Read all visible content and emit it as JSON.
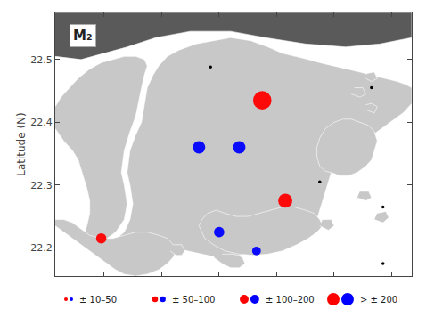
{
  "chart_data": {
    "type": "scatter",
    "ylabel": "Latitude (N)",
    "xlim": [
      113.815,
      114.435
    ],
    "ylim": [
      22.155,
      22.575
    ],
    "xticks": [
      113.9,
      114.0,
      114.1,
      114.2,
      114.3,
      114.4
    ],
    "yticks": [
      22.2,
      22.3,
      22.4,
      22.5
    ],
    "tick_labels": "y",
    "grid": false,
    "legend": "bottom",
    "annotations": [
      "M₂"
    ],
    "series": [
      {
        "type": "area",
        "color": "#5a5a5a",
        "points": [
          [
            113.815,
            22.575
          ],
          [
            114.435,
            22.575
          ],
          [
            114.435,
            22.535
          ],
          [
            114.38,
            22.525
          ],
          [
            114.32,
            22.52
          ],
          [
            114.25,
            22.525
          ],
          [
            114.18,
            22.535
          ],
          [
            114.12,
            22.545
          ],
          [
            114.05,
            22.545
          ],
          [
            113.99,
            22.535
          ],
          [
            113.94,
            22.52
          ],
          [
            113.9,
            22.51
          ],
          [
            113.86,
            22.5
          ],
          [
            113.815,
            22.505
          ]
        ]
      },
      {
        "type": "area",
        "color": "#c8c8c8",
        "points": [
          [
            113.88,
            22.19
          ],
          [
            113.9,
            22.195
          ],
          [
            113.915,
            22.21
          ],
          [
            113.935,
            22.225
          ],
          [
            113.945,
            22.245
          ],
          [
            113.95,
            22.27
          ],
          [
            113.945,
            22.3
          ],
          [
            113.94,
            22.32
          ],
          [
            113.945,
            22.355
          ],
          [
            113.955,
            22.38
          ],
          [
            113.965,
            22.4
          ],
          [
            113.97,
            22.425
          ],
          [
            113.975,
            22.455
          ],
          [
            113.985,
            22.475
          ],
          [
            113.995,
            22.49
          ],
          [
            114.01,
            22.505
          ],
          [
            114.03,
            22.515
          ],
          [
            114.06,
            22.525
          ],
          [
            114.09,
            22.53
          ],
          [
            114.12,
            22.535
          ],
          [
            114.155,
            22.53
          ],
          [
            114.185,
            22.52
          ],
          [
            114.21,
            22.51
          ],
          [
            114.235,
            22.505
          ],
          [
            114.255,
            22.5
          ],
          [
            114.275,
            22.495
          ],
          [
            114.3,
            22.49
          ],
          [
            114.325,
            22.485
          ],
          [
            114.345,
            22.48
          ],
          [
            114.365,
            22.475
          ],
          [
            114.39,
            22.47
          ],
          [
            114.41,
            22.465
          ],
          [
            114.425,
            22.46
          ],
          [
            114.435,
            22.455
          ],
          [
            114.435,
            22.43
          ],
          [
            114.42,
            22.415
          ],
          [
            114.405,
            22.405
          ],
          [
            114.39,
            22.395
          ],
          [
            114.375,
            22.385
          ],
          [
            114.36,
            22.375
          ],
          [
            114.345,
            22.365
          ],
          [
            114.33,
            22.355
          ],
          [
            114.315,
            22.345
          ],
          [
            114.305,
            22.335
          ],
          [
            114.295,
            22.32
          ],
          [
            114.29,
            22.305
          ],
          [
            114.285,
            22.29
          ],
          [
            114.28,
            22.275
          ],
          [
            114.275,
            22.26
          ],
          [
            114.27,
            22.245
          ],
          [
            114.265,
            22.235
          ],
          [
            114.255,
            22.225
          ],
          [
            114.245,
            22.22
          ],
          [
            114.235,
            22.215
          ],
          [
            114.22,
            22.21
          ],
          [
            114.205,
            22.205
          ],
          [
            114.19,
            22.2
          ],
          [
            114.17,
            22.195
          ],
          [
            114.145,
            22.19
          ],
          [
            114.12,
            22.185
          ],
          [
            114.095,
            22.185
          ],
          [
            114.07,
            22.19
          ],
          [
            114.045,
            22.195
          ],
          [
            114.02,
            22.2
          ],
          [
            113.995,
            22.205
          ],
          [
            113.97,
            22.205
          ],
          [
            113.945,
            22.2
          ],
          [
            113.92,
            22.195
          ],
          [
            113.9,
            22.19
          ],
          [
            113.88,
            22.19
          ]
        ]
      },
      {
        "type": "area",
        "color": "#c8c8c8",
        "points": [
          [
            113.815,
            22.39
          ],
          [
            113.83,
            22.37
          ],
          [
            113.845,
            22.355
          ],
          [
            113.855,
            22.34
          ],
          [
            113.86,
            22.325
          ],
          [
            113.865,
            22.31
          ],
          [
            113.87,
            22.295
          ],
          [
            113.875,
            22.275
          ],
          [
            113.875,
            22.255
          ],
          [
            113.87,
            22.235
          ],
          [
            113.865,
            22.22
          ],
          [
            113.875,
            22.215
          ],
          [
            113.89,
            22.21
          ],
          [
            113.905,
            22.215
          ],
          [
            113.92,
            22.225
          ],
          [
            113.935,
            22.245
          ],
          [
            113.94,
            22.27
          ],
          [
            113.935,
            22.3
          ],
          [
            113.93,
            22.32
          ],
          [
            113.935,
            22.355
          ],
          [
            113.945,
            22.385
          ],
          [
            113.955,
            22.41
          ],
          [
            113.96,
            22.435
          ],
          [
            113.965,
            22.455
          ],
          [
            113.97,
            22.475
          ],
          [
            113.975,
            22.49
          ],
          [
            113.97,
            22.5
          ],
          [
            113.955,
            22.505
          ],
          [
            113.935,
            22.505
          ],
          [
            113.915,
            22.5
          ],
          [
            113.895,
            22.495
          ],
          [
            113.875,
            22.485
          ],
          [
            113.855,
            22.47
          ],
          [
            113.84,
            22.455
          ],
          [
            113.825,
            22.44
          ],
          [
            113.815,
            22.425
          ]
        ]
      },
      {
        "type": "area",
        "color": "#c8c8c8",
        "points": [
          [
            113.815,
            22.235
          ],
          [
            113.83,
            22.225
          ],
          [
            113.845,
            22.215
          ],
          [
            113.86,
            22.205
          ],
          [
            113.875,
            22.195
          ],
          [
            113.89,
            22.185
          ],
          [
            113.905,
            22.175
          ],
          [
            113.92,
            22.165
          ],
          [
            113.935,
            22.158
          ],
          [
            113.955,
            22.155
          ],
          [
            113.975,
            22.158
          ],
          [
            113.995,
            22.165
          ],
          [
            114.01,
            22.175
          ],
          [
            114.02,
            22.185
          ],
          [
            114.025,
            22.195
          ],
          [
            114.02,
            22.205
          ],
          [
            114.01,
            22.215
          ],
          [
            113.995,
            22.22
          ],
          [
            113.975,
            22.225
          ],
          [
            113.955,
            22.225
          ],
          [
            113.935,
            22.22
          ],
          [
            113.915,
            22.215
          ],
          [
            113.895,
            22.215
          ],
          [
            113.875,
            22.22
          ],
          [
            113.86,
            22.23
          ],
          [
            113.845,
            22.24
          ],
          [
            113.83,
            22.245
          ],
          [
            113.815,
            22.245
          ]
        ]
      },
      {
        "type": "area",
        "color": "#c8c8c8",
        "points": [
          [
            114.075,
            22.215
          ],
          [
            114.09,
            22.205
          ],
          [
            114.11,
            22.195
          ],
          [
            114.135,
            22.19
          ],
          [
            114.16,
            22.188
          ],
          [
            114.185,
            22.19
          ],
          [
            114.21,
            22.195
          ],
          [
            114.235,
            22.205
          ],
          [
            114.255,
            22.215
          ],
          [
            114.27,
            22.225
          ],
          [
            114.28,
            22.235
          ],
          [
            114.275,
            22.245
          ],
          [
            114.265,
            22.255
          ],
          [
            114.25,
            22.26
          ],
          [
            114.23,
            22.265
          ],
          [
            114.21,
            22.265
          ],
          [
            114.19,
            22.26
          ],
          [
            114.17,
            22.255
          ],
          [
            114.15,
            22.25
          ],
          [
            114.13,
            22.25
          ],
          [
            114.11,
            22.255
          ],
          [
            114.095,
            22.26
          ],
          [
            114.08,
            22.255
          ],
          [
            114.07,
            22.245
          ],
          [
            114.065,
            22.235
          ],
          [
            114.07,
            22.225
          ],
          [
            114.075,
            22.215
          ]
        ]
      },
      {
        "type": "area",
        "color": "#c8c8c8",
        "points": [
          [
            114.295,
            22.32
          ],
          [
            114.31,
            22.315
          ],
          [
            114.325,
            22.315
          ],
          [
            114.34,
            22.32
          ],
          [
            114.355,
            22.33
          ],
          [
            114.365,
            22.34
          ],
          [
            114.37,
            22.355
          ],
          [
            114.375,
            22.37
          ],
          [
            114.37,
            22.385
          ],
          [
            114.36,
            22.395
          ],
          [
            114.345,
            22.4
          ],
          [
            114.33,
            22.405
          ],
          [
            114.315,
            22.405
          ],
          [
            114.3,
            22.4
          ],
          [
            114.285,
            22.39
          ],
          [
            114.275,
            22.375
          ],
          [
            114.27,
            22.36
          ],
          [
            114.27,
            22.345
          ],
          [
            114.275,
            22.33
          ],
          [
            114.285,
            22.322
          ],
          [
            114.295,
            22.32
          ]
        ]
      },
      {
        "type": "area",
        "color": "#c8c8c8",
        "points": [
          [
            114.09,
            22.185
          ],
          [
            114.105,
            22.175
          ],
          [
            114.12,
            22.168
          ],
          [
            114.135,
            22.168
          ],
          [
            114.145,
            22.175
          ],
          [
            114.14,
            22.185
          ],
          [
            114.125,
            22.19
          ],
          [
            114.105,
            22.19
          ]
        ]
      },
      {
        "type": "area",
        "color": "#c8c8c8",
        "points": [
          [
            114.015,
            22.195
          ],
          [
            114.025,
            22.188
          ],
          [
            114.035,
            22.188
          ],
          [
            114.04,
            22.195
          ],
          [
            114.035,
            22.205
          ],
          [
            114.02,
            22.205
          ]
        ]
      },
      {
        "type": "area",
        "color": "#c8c8c8",
        "points": [
          [
            114.33,
            22.445
          ],
          [
            114.345,
            22.44
          ],
          [
            114.355,
            22.445
          ],
          [
            114.35,
            22.455
          ],
          [
            114.335,
            22.455
          ]
        ]
      },
      {
        "type": "area",
        "color": "#c8c8c8",
        "points": [
          [
            114.355,
            22.42
          ],
          [
            114.37,
            22.415
          ],
          [
            114.375,
            22.425
          ],
          [
            114.365,
            22.43
          ],
          [
            114.355,
            22.428
          ]
        ]
      },
      {
        "type": "area",
        "color": "#c8c8c8",
        "points": [
          [
            114.34,
            22.28
          ],
          [
            114.355,
            22.275
          ],
          [
            114.365,
            22.28
          ],
          [
            114.36,
            22.29
          ],
          [
            114.345,
            22.29
          ]
        ]
      },
      {
        "type": "area",
        "color": "#c8c8c8",
        "points": [
          [
            114.355,
            22.47
          ],
          [
            114.365,
            22.465
          ],
          [
            114.375,
            22.47
          ],
          [
            114.37,
            22.48
          ],
          [
            114.358,
            22.478
          ]
        ]
      },
      {
        "type": "area",
        "color": "#c8c8c8",
        "points": [
          [
            114.37,
            22.245
          ],
          [
            114.385,
            22.24
          ],
          [
            114.395,
            22.248
          ],
          [
            114.39,
            22.258
          ],
          [
            114.375,
            22.255
          ]
        ]
      },
      {
        "type": "area",
        "color": "#c8c8c8",
        "points": [
          [
            114.275,
            22.235
          ],
          [
            114.29,
            22.228
          ],
          [
            114.3,
            22.235
          ],
          [
            114.295,
            22.245
          ],
          [
            114.28,
            22.245
          ]
        ]
      },
      {
        "type": "scatter",
        "color": "black",
        "x": [
          114.085,
          114.275,
          114.365,
          114.385,
          114.385
        ],
        "y": [
          22.488,
          22.305,
          22.455,
          22.265,
          22.175
        ]
      },
      {
        "type": "scatter",
        "color": "red",
        "x": [
          114.175,
          114.215,
          113.895
        ],
        "y": [
          22.435,
          22.275,
          22.215
        ],
        "size": [
          220,
          130,
          70
        ]
      },
      {
        "type": "scatter",
        "color": "blue",
        "x": [
          114.065,
          114.135,
          114.1,
          114.165
        ],
        "y": [
          22.36,
          22.36,
          22.225,
          22.195
        ],
        "size": [
          100,
          100,
          70,
          50
        ]
      }
    ],
    "size_legend": {
      "labels": [
        "± 10–50",
        "± 50–100",
        "± 100–200",
        "> ± 200"
      ],
      "red_sizes": [
        15,
        40,
        90,
        180
      ],
      "blue_sizes": [
        15,
        40,
        90,
        180
      ]
    }
  }
}
